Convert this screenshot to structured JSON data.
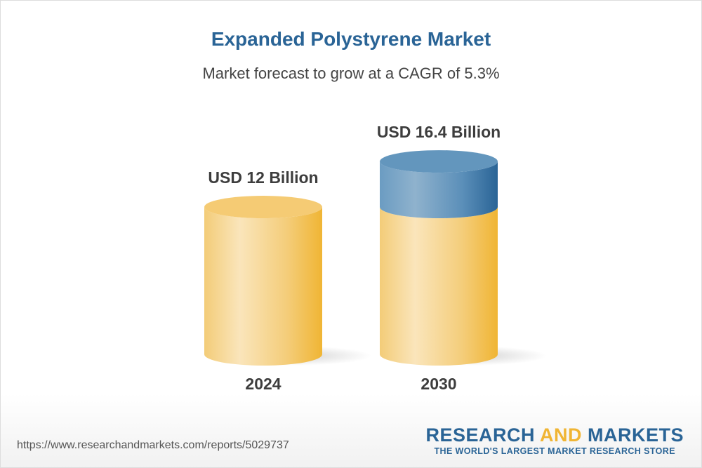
{
  "chart_data": {
    "type": "bar",
    "style": "3d-cylinder",
    "title": "Expanded Polystyrene Market",
    "subtitle": "Market forecast to grow at a CAGR of 5.3%",
    "categories": [
      "2024",
      "2030"
    ],
    "values": [
      12,
      16.4
    ],
    "value_labels": [
      "USD 12 Billion",
      "USD 16.4 Billion"
    ],
    "unit": "USD Billion",
    "colors": {
      "base": "#f0b534",
      "growth": "#2a6496",
      "title": "#2a6496"
    }
  },
  "footer": {
    "url": "https://www.researchandmarkets.com/reports/5029737",
    "logo_word1": "RESEARCH",
    "logo_word2": "AND",
    "logo_word3": "MARKETS",
    "tagline": "THE WORLD'S LARGEST MARKET RESEARCH STORE"
  }
}
